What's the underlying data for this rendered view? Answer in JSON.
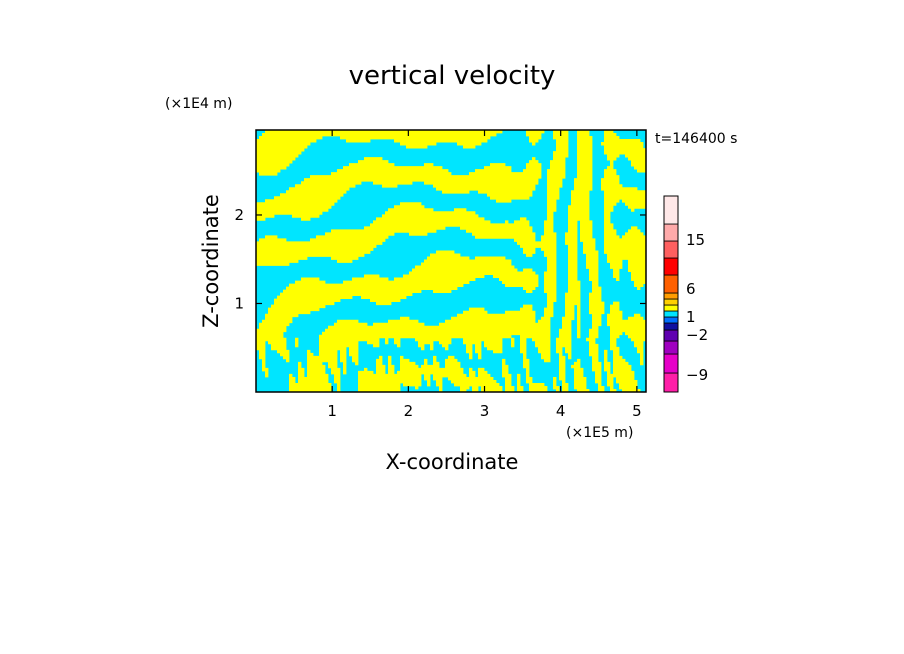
{
  "chart_data": {
    "type": "heatmap",
    "title": "vertical velocity",
    "xlabel": "X-coordinate",
    "ylabel": "Z-coordinate",
    "x_unit": "(×1E5 m)",
    "y_unit": "(×1E4 m)",
    "time_label": "t=146400 s",
    "xlim": [
      0,
      5.12
    ],
    "ylim": [
      0,
      2.96
    ],
    "x_ticks": [
      {
        "value": 1,
        "label": "1"
      },
      {
        "value": 2,
        "label": "2"
      },
      {
        "value": 3,
        "label": "3"
      },
      {
        "value": 4,
        "label": "4"
      },
      {
        "value": 5,
        "label": "5"
      }
    ],
    "y_ticks": [
      {
        "value": 1,
        "label": "1"
      },
      {
        "value": 2,
        "label": "2"
      }
    ],
    "field_colors": {
      "positive": "#ffff00",
      "negative": "#00e5ff"
    },
    "colorbar": {
      "levels": [
        {
          "color": "#ff1fa8"
        },
        {
          "color": "#e600c8"
        },
        {
          "color": "#a000c0"
        },
        {
          "color": "#6000b0"
        },
        {
          "color": "#1010a0"
        },
        {
          "color": "#0070ff"
        },
        {
          "color": "#00e5ff"
        },
        {
          "color": "#ffff00"
        },
        {
          "color": "#ffd000"
        },
        {
          "color": "#ff9d00"
        },
        {
          "color": "#ff6000"
        },
        {
          "color": "#ff0000"
        },
        {
          "color": "#ff6060"
        },
        {
          "color": "#ffaaaa"
        },
        {
          "color": "#ffe8e8"
        }
      ],
      "tick_labels": [
        {
          "label": "15"
        },
        {
          "label": "6"
        },
        {
          "label": "1"
        },
        {
          "label": "−2"
        },
        {
          "label": "−9"
        }
      ]
    }
  }
}
